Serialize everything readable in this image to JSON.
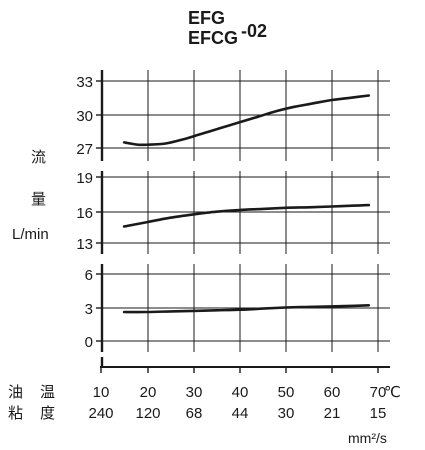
{
  "title": {
    "line1": "EFG",
    "line2": "EFCG",
    "suffix": "-02"
  },
  "y_axis_label": {
    "char1": "流",
    "char2": "量",
    "unit": "L/min"
  },
  "x_axis": {
    "row1_label_a": "油",
    "row1_label_b": "温",
    "row2_label_a": "粘",
    "row2_label_b": "度",
    "temperature_ticks": [
      "10",
      "20",
      "30",
      "40",
      "50",
      "60",
      "70"
    ],
    "temperature_unit": "℃",
    "viscosity_ticks": [
      "240",
      "120",
      "68",
      "44",
      "30",
      "21",
      "15"
    ],
    "viscosity_unit": "mm²/s"
  },
  "colors": {
    "ink": "#1a1a1a",
    "background": "#ffffff"
  },
  "chart_data": [
    {
      "type": "line",
      "xlabel": "油温 (℃) / 粘度 (mm²/s)",
      "ylabel": "流量 L/min",
      "xlim": [
        10,
        70
      ],
      "ylim": [
        27,
        33
      ],
      "yticks": [
        27,
        30,
        33
      ],
      "grid": true,
      "series": [
        {
          "x": [
            15,
            18,
            20,
            24,
            28,
            32,
            36,
            40,
            44,
            48,
            52,
            56,
            60,
            64,
            68
          ],
          "values": [
            27.5,
            27.3,
            27.3,
            27.4,
            27.8,
            28.3,
            28.8,
            29.3,
            29.8,
            30.3,
            30.7,
            31.0,
            31.3,
            31.5,
            31.7
          ]
        }
      ]
    },
    {
      "type": "line",
      "xlim": [
        10,
        70
      ],
      "ylim": [
        13,
        19
      ],
      "yticks": [
        13,
        16,
        19
      ],
      "grid": true,
      "series": [
        {
          "x": [
            15,
            20,
            25,
            30,
            35,
            40,
            45,
            50,
            55,
            60,
            65,
            68
          ],
          "values": [
            14.5,
            14.9,
            15.3,
            15.6,
            15.85,
            16.0,
            16.1,
            16.2,
            16.25,
            16.32,
            16.4,
            16.45
          ]
        }
      ]
    },
    {
      "type": "line",
      "xlim": [
        10,
        70
      ],
      "ylim": [
        0,
        6
      ],
      "yticks": [
        0,
        3,
        6
      ],
      "grid": true,
      "series": [
        {
          "x": [
            15,
            20,
            25,
            30,
            35,
            40,
            45,
            50,
            55,
            60,
            65,
            68
          ],
          "values": [
            2.6,
            2.6,
            2.65,
            2.7,
            2.75,
            2.8,
            2.9,
            3.0,
            3.05,
            3.1,
            3.15,
            3.2
          ]
        }
      ]
    }
  ]
}
